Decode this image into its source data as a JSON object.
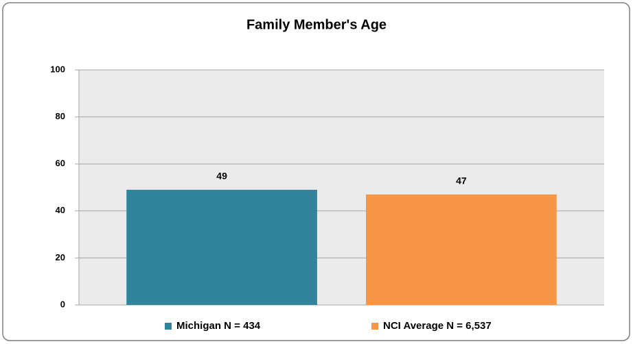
{
  "chart_data": {
    "type": "bar",
    "title": "Family Member's Age",
    "categories": [
      null
    ],
    "series": [
      {
        "name": "Michigan N = 434",
        "color": "#31849b",
        "values": [
          49
        ]
      },
      {
        "name": "NCI Average N = 6,537",
        "color": "#f79646",
        "values": [
          47
        ]
      }
    ],
    "ylim": [
      0,
      100
    ],
    "yticks": [
      0,
      20,
      40,
      60,
      80,
      100
    ],
    "grid": true,
    "legend": "bottom"
  }
}
